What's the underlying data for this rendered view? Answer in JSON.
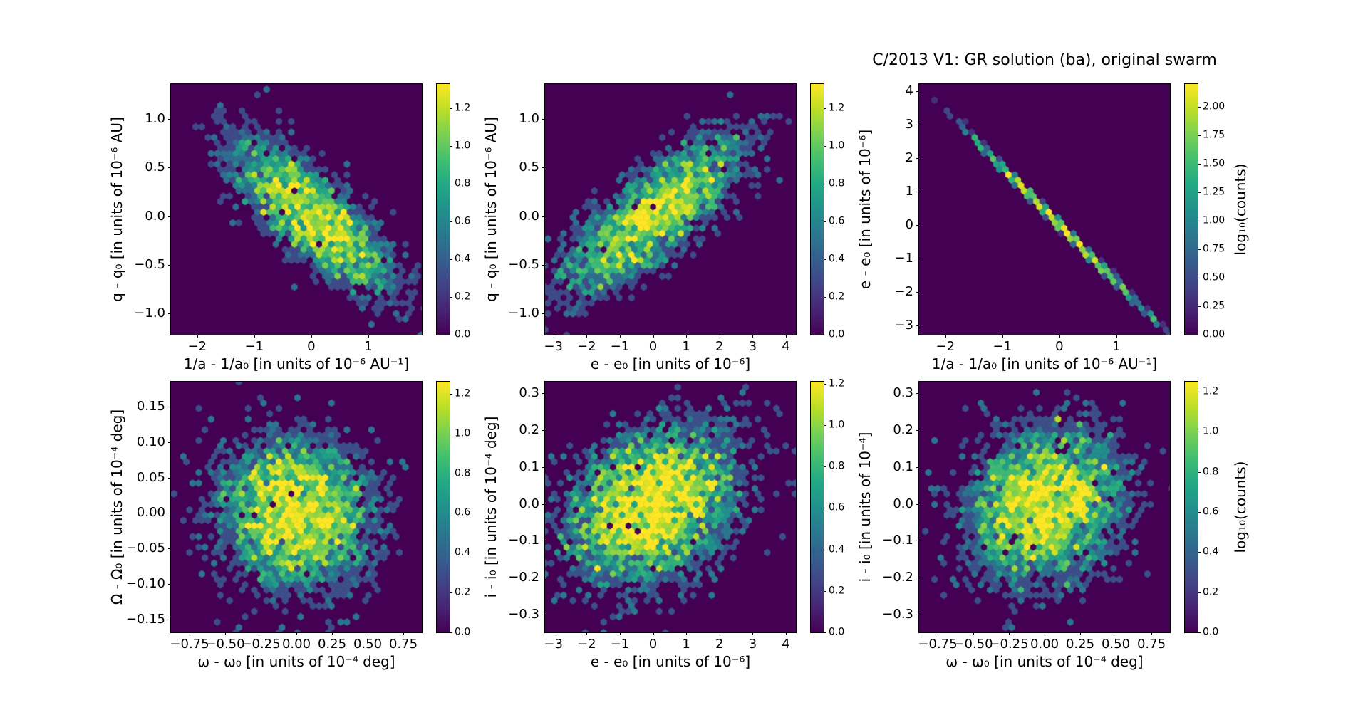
{
  "figure": {
    "title": "C/2013 V1: GR solution (ba), original swarm",
    "colormap": "viridis",
    "background": "#ffffff",
    "panel_background": "#440154",
    "peak_color": "#fde725",
    "axes_color": "#000000"
  },
  "chart_data": [
    {
      "type": "hexbin",
      "position": "top-left",
      "xlabel": "1/a - 1/a₀ [in units of 10⁻⁶ AU⁻¹]",
      "ylabel": "q - q₀ [in units of 10⁻⁶ AU]",
      "xlim": [
        -2.46,
        1.94
      ],
      "ylim": [
        -1.22,
        1.36
      ],
      "xticks": [
        -2,
        -1,
        0,
        1
      ],
      "xtick_labels": [
        "−2",
        "−1",
        "0",
        "1"
      ],
      "yticks": [
        1.0,
        0.5,
        0.0,
        -0.5,
        -1.0
      ],
      "ytick_labels": [
        "1.0",
        "0.5",
        "0.0",
        "−0.5",
        "−1.0"
      ],
      "colorbar": {
        "ticks": [
          0,
          0.2,
          0.4,
          0.6,
          0.8,
          1.0,
          1.2
        ],
        "labels": [
          "0.0",
          "0.2",
          "0.4",
          "0.6",
          "0.8",
          "1.0",
          "1.2"
        ],
        "vmax": 1.33,
        "label": null
      },
      "distribution": {
        "kind": "gaussian",
        "center": [
          0,
          0
        ],
        "sigma": [
          0.75,
          0.42
        ],
        "rho": -0.78,
        "amplitude": 18,
        "peak_log10_counts": 1.3
      },
      "seed": 11
    },
    {
      "type": "hexbin",
      "position": "top-middle",
      "xlabel": "e - e₀ [in units of 10⁻⁶]",
      "ylabel": "q - q₀ [in units of 10⁻⁶ AU]",
      "xlim": [
        -3.25,
        4.3
      ],
      "ylim": [
        -1.22,
        1.36
      ],
      "xticks": [
        -3,
        -2,
        -1,
        0,
        1,
        2,
        3,
        4
      ],
      "xtick_labels": [
        "−3",
        "−2",
        "−1",
        "0",
        "1",
        "2",
        "3",
        "4"
      ],
      "yticks": [
        1.0,
        0.5,
        0.0,
        -0.5,
        -1.0
      ],
      "ytick_labels": [
        "1.0",
        "0.5",
        "0.0",
        "−0.5",
        "−1.0"
      ],
      "colorbar": {
        "ticks": [
          0,
          0.2,
          0.4,
          0.6,
          0.8,
          1.0,
          1.2
        ],
        "labels": [
          "0.0",
          "0.2",
          "0.4",
          "0.6",
          "0.8",
          "1.0",
          "1.2"
        ],
        "vmax": 1.33,
        "label": null
      },
      "distribution": {
        "kind": "gaussian",
        "center": [
          0,
          0
        ],
        "sigma": [
          1.35,
          0.42
        ],
        "rho": 0.78,
        "amplitude": 18,
        "peak_log10_counts": 1.3
      },
      "seed": 22
    },
    {
      "type": "hexbin",
      "position": "top-right",
      "xlabel": "1/a - 1/a₀ [in units of 10⁻⁶ AU⁻¹]",
      "ylabel": "e - e₀ [in units of 10⁻⁶]",
      "xlim": [
        -2.46,
        1.94
      ],
      "ylim": [
        -3.28,
        4.21
      ],
      "xticks": [
        -2,
        -1,
        0,
        1
      ],
      "xtick_labels": [
        "−2",
        "−1",
        "0",
        "1"
      ],
      "yticks": [
        4,
        3,
        2,
        1,
        0,
        -1,
        -2,
        -3
      ],
      "ytick_labels": [
        "4",
        "3",
        "2",
        "1",
        "0",
        "−1",
        "−2",
        "−3"
      ],
      "colorbar": {
        "ticks": [
          0,
          0.25,
          0.5,
          0.75,
          1.0,
          1.25,
          1.5,
          1.75,
          2.0
        ],
        "labels": [
          "0.00",
          "0.25",
          "0.50",
          "0.75",
          "1.00",
          "1.25",
          "1.50",
          "1.75",
          "2.00"
        ],
        "vmax": 2.2,
        "label": "log₁₀(counts)"
      },
      "distribution": {
        "kind": "line",
        "center": [
          0,
          0
        ],
        "slope": -1.71,
        "sigma_along": 0.75,
        "sigma_cross": 0.07,
        "amplitude": 140,
        "peak_log10_counts": 2.15
      },
      "seed": 33
    },
    {
      "type": "hexbin",
      "position": "bottom-left",
      "xlabel": "ω - ω₀ [in units of 10⁻⁴ deg]",
      "ylabel": "Ω - Ω₀ [in units of 10⁻⁴ deg]",
      "xlim": [
        -0.88,
        0.88
      ],
      "ylim": [
        -0.168,
        0.185
      ],
      "xticks": [
        -0.75,
        -0.5,
        -0.25,
        0,
        0.25,
        0.5,
        0.75
      ],
      "xtick_labels": [
        "−0.75",
        "−0.50",
        "−0.25",
        "0.00",
        "0.25",
        "0.50",
        "0.75"
      ],
      "yticks": [
        0.15,
        0.1,
        0.05,
        0,
        -0.05,
        -0.1,
        -0.15
      ],
      "ytick_labels": [
        "0.15",
        "0.10",
        "0.05",
        "0.00",
        "−0.05",
        "−0.10",
        "−0.15"
      ],
      "colorbar": {
        "ticks": [
          0,
          0.2,
          0.4,
          0.6,
          0.8,
          1.0,
          1.2
        ],
        "labels": [
          "0.0",
          "0.2",
          "0.4",
          "0.6",
          "0.8",
          "1.0",
          "1.2"
        ],
        "vmax": 1.26,
        "label": null
      },
      "distribution": {
        "kind": "gaussian",
        "center": [
          0,
          0
        ],
        "sigma": [
          0.28,
          0.055
        ],
        "rho": -0.05,
        "amplitude": 18,
        "peak_log10_counts": 1.26
      },
      "seed": 44
    },
    {
      "type": "hexbin",
      "position": "bottom-middle",
      "xlabel": "e - e₀ [in units of 10⁻⁶]",
      "ylabel": "i - i₀ [in units of 10⁻⁴ deg]",
      "xlim": [
        -3.25,
        4.3
      ],
      "ylim": [
        -0.348,
        0.331
      ],
      "xticks": [
        -3,
        -2,
        -1,
        0,
        1,
        2,
        3,
        4
      ],
      "xtick_labels": [
        "−3",
        "−2",
        "−1",
        "0",
        "1",
        "2",
        "3",
        "4"
      ],
      "yticks": [
        0.3,
        0.2,
        0.1,
        0,
        -0.1,
        -0.2,
        -0.3
      ],
      "ytick_labels": [
        "0.3",
        "0.2",
        "0.1",
        "0.0",
        "−0.1",
        "−0.2",
        "−0.3"
      ],
      "colorbar": {
        "ticks": [
          0,
          0.2,
          0.4,
          0.6,
          0.8,
          1.0,
          1.2
        ],
        "labels": [
          "0.0",
          "0.2",
          "0.4",
          "0.6",
          "0.8",
          "1.0",
          "1.2"
        ],
        "vmax": 1.21,
        "label": null
      },
      "distribution": {
        "kind": "gaussian",
        "center": [
          0,
          0
        ],
        "sigma": [
          1.35,
          0.11
        ],
        "rho": 0.3,
        "amplitude": 18,
        "peak_log10_counts": 1.21
      },
      "seed": 55
    },
    {
      "type": "hexbin",
      "position": "bottom-right",
      "xlabel": "ω - ω₀ [in units of 10⁻⁴ deg]",
      "ylabel": "i - i₀ [in units of 10⁻⁴]",
      "xlim": [
        -0.88,
        0.88
      ],
      "ylim": [
        -0.348,
        0.331
      ],
      "xticks": [
        -0.75,
        -0.5,
        -0.25,
        0,
        0.25,
        0.5,
        0.75
      ],
      "xtick_labels": [
        "−0.75",
        "−0.50",
        "−0.25",
        "0.00",
        "0.25",
        "0.50",
        "0.75"
      ],
      "yticks": [
        0.3,
        0.2,
        0.1,
        0,
        -0.1,
        -0.2,
        -0.3
      ],
      "ytick_labels": [
        "0.3",
        "0.2",
        "0.1",
        "0.0",
        "−0.1",
        "−0.2",
        "−0.3"
      ],
      "colorbar": {
        "ticks": [
          0,
          0.2,
          0.4,
          0.6,
          0.8,
          1.0,
          1.2
        ],
        "labels": [
          "0.0",
          "0.2",
          "0.4",
          "0.6",
          "0.8",
          "1.0",
          "1.2"
        ],
        "vmax": 1.25,
        "label": "log₁₀(counts)"
      },
      "distribution": {
        "kind": "gaussian",
        "center": [
          0,
          0
        ],
        "sigma": [
          0.28,
          0.11
        ],
        "rho": 0.15,
        "amplitude": 18,
        "peak_log10_counts": 1.25
      },
      "seed": 66
    }
  ]
}
